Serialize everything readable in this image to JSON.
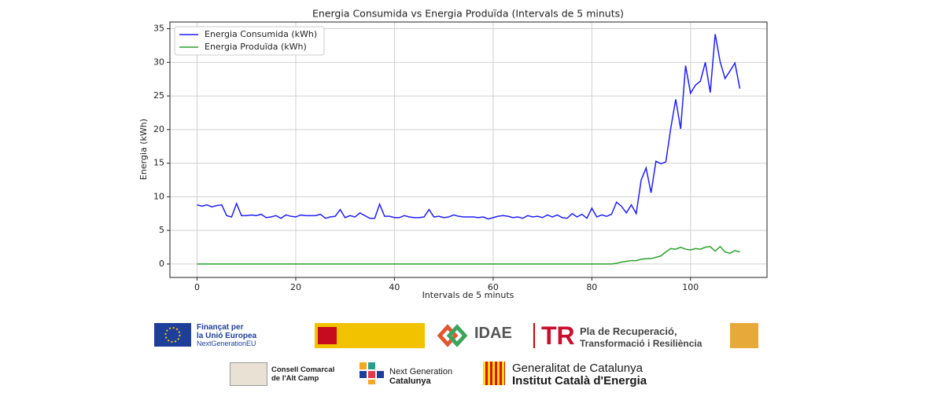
{
  "chart_data": {
    "type": "line",
    "title": "Energia Consumida vs Energia Produïda (Intervals de 5 minuts)",
    "xlabel": "Intervals de 5 minuts",
    "ylabel": "Energia (kWh)",
    "x": [
      0,
      1,
      2,
      3,
      4,
      5,
      6,
      7,
      8,
      9,
      10,
      11,
      12,
      13,
      14,
      15,
      16,
      17,
      18,
      19,
      20,
      21,
      22,
      23,
      24,
      25,
      26,
      27,
      28,
      29,
      30,
      31,
      32,
      33,
      34,
      35,
      36,
      37,
      38,
      39,
      40,
      41,
      42,
      43,
      44,
      45,
      46,
      47,
      48,
      49,
      50,
      51,
      52,
      53,
      54,
      55,
      56,
      57,
      58,
      59,
      60,
      61,
      62,
      63,
      64,
      65,
      66,
      67,
      68,
      69,
      70,
      71,
      72,
      73,
      74,
      75,
      76,
      77,
      78,
      79,
      80,
      81,
      82,
      83,
      84,
      85,
      86,
      87,
      88,
      89,
      90,
      91,
      92,
      93,
      94,
      95,
      96,
      97,
      98,
      99,
      100,
      101,
      102,
      103,
      104,
      105,
      106,
      107,
      108,
      109,
      110
    ],
    "series": [
      {
        "name": "Energia Consumida (kWh)",
        "color": "#1f1fff",
        "values": [
          8.8,
          8.6,
          8.8,
          8.5,
          8.7,
          8.8,
          7.2,
          7.0,
          9.0,
          7.2,
          7.2,
          7.3,
          7.2,
          7.4,
          6.9,
          7.0,
          7.2,
          6.8,
          7.3,
          7.1,
          7.0,
          7.3,
          7.2,
          7.2,
          7.2,
          7.4,
          6.8,
          7.0,
          7.1,
          8.1,
          6.9,
          7.2,
          7.0,
          7.6,
          7.2,
          6.8,
          6.8,
          8.9,
          7.1,
          7.1,
          6.9,
          6.9,
          7.2,
          7.0,
          6.9,
          6.9,
          7.0,
          8.1,
          7.0,
          7.1,
          6.9,
          7.0,
          7.3,
          7.1,
          7.0,
          7.0,
          7.0,
          6.9,
          7.0,
          6.7,
          6.9,
          7.1,
          7.2,
          7.1,
          6.9,
          7.0,
          6.8,
          7.2,
          7.0,
          7.1,
          6.9,
          7.3,
          7.0,
          7.3,
          6.9,
          6.8,
          7.5,
          7.0,
          7.4,
          6.8,
          8.3,
          7.0,
          7.3,
          7.1,
          7.4,
          9.2,
          8.6,
          7.6,
          8.8,
          7.5,
          12.5,
          14.3,
          10.6,
          15.3,
          14.9,
          15.2,
          20.2,
          24.5,
          20.1,
          29.5,
          25.4,
          26.6,
          27.2,
          30.0,
          25.5,
          34.2,
          30.1,
          27.6,
          28.7,
          29.9,
          26.1
        ]
      },
      {
        "name": "Energia Produïda (kWh)",
        "color": "#2ca02c",
        "values": [
          0,
          0,
          0,
          0,
          0,
          0,
          0,
          0,
          0,
          0,
          0,
          0,
          0,
          0,
          0,
          0,
          0,
          0,
          0,
          0,
          0,
          0,
          0,
          0,
          0,
          0,
          0,
          0,
          0,
          0,
          0,
          0,
          0,
          0,
          0,
          0,
          0,
          0,
          0,
          0,
          0,
          0,
          0,
          0,
          0,
          0,
          0,
          0,
          0,
          0,
          0,
          0,
          0,
          0,
          0,
          0,
          0,
          0,
          0,
          0,
          0,
          0,
          0,
          0,
          0,
          0,
          0,
          0,
          0,
          0,
          0,
          0,
          0,
          0,
          0,
          0,
          0,
          0,
          0,
          0,
          0,
          0,
          0,
          0,
          0,
          0.1,
          0.3,
          0.4,
          0.5,
          0.5,
          0.7,
          0.8,
          0.8,
          1.0,
          1.2,
          1.8,
          2.3,
          2.2,
          2.5,
          2.2,
          2.1,
          2.3,
          2.2,
          2.5,
          2.6,
          1.9,
          2.6,
          1.8,
          1.6,
          2.0,
          1.8
        ]
      }
    ],
    "xlim": [
      -5.5,
      115.5
    ],
    "ylim": [
      -2,
      36
    ],
    "xticks": [
      0,
      20,
      40,
      60,
      80,
      100
    ],
    "yticks": [
      0,
      5,
      10,
      15,
      20,
      25,
      30,
      35
    ],
    "grid": true,
    "legend": "upper left"
  },
  "logos": [
    "Finançat per",
    "la Unió Europea",
    "NextGenerationEU",
    "IDAE",
    "Pla de Recuperació,",
    "Transformació i Resiliència",
    "Consell Comarcal",
    "de l'Alt Camp",
    "Next Generation",
    "Catalunya",
    "Generalitat de Catalunya",
    "Institut Català d'Energia"
  ]
}
